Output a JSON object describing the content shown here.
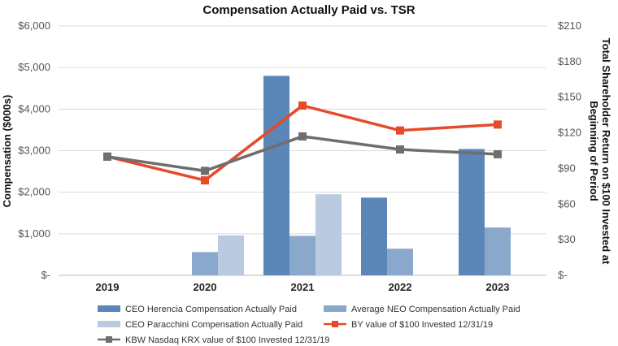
{
  "chart_data": {
    "type": "bar+line",
    "title": "Compensation Actually Paid vs. TSR",
    "ylabel_left": "Compensation ($000s)",
    "ylabel_right_line1": "Total Shareholder Return on $100 Invested at",
    "ylabel_right_line2": "Beginning of Period",
    "categories": [
      "2019",
      "2020",
      "2021",
      "2022",
      "2023"
    ],
    "ylim_left": [
      0,
      6000
    ],
    "ylim_right": [
      0,
      210
    ],
    "left_ticks": [
      {
        "value": 0,
        "label": "$-"
      },
      {
        "value": 1000,
        "label": "$1,000"
      },
      {
        "value": 2000,
        "label": "$2,000"
      },
      {
        "value": 3000,
        "label": "$3,000"
      },
      {
        "value": 4000,
        "label": "$4,000"
      },
      {
        "value": 5000,
        "label": "$5,000"
      },
      {
        "value": 6000,
        "label": "$6,000"
      }
    ],
    "right_ticks": [
      {
        "value": 0,
        "label": "$-"
      },
      {
        "value": 30,
        "label": "$30"
      },
      {
        "value": 60,
        "label": "$60"
      },
      {
        "value": 90,
        "label": "$90"
      },
      {
        "value": 120,
        "label": "$120"
      },
      {
        "value": 150,
        "label": "$150"
      },
      {
        "value": 180,
        "label": "$180"
      },
      {
        "value": 210,
        "label": "$210"
      }
    ],
    "bar_series": [
      {
        "name": "CEO Herencia Compensation Actually Paid",
        "color": "#5a87b8",
        "values": [
          null,
          null,
          4800,
          1870,
          3040
        ]
      },
      {
        "name": "Average NEO Compensation Actually Paid",
        "color": "#8aa8cc",
        "values": [
          null,
          560,
          950,
          640,
          1150
        ]
      },
      {
        "name": "CEO Paracchini Compensation Actually Paid",
        "color": "#b9cae1",
        "values": [
          null,
          960,
          1950,
          null,
          null
        ]
      }
    ],
    "line_series": [
      {
        "name": "BY value of $100 Invested 12/31/19",
        "color": "#e64a2a",
        "values": [
          100,
          80,
          143,
          122,
          127
        ]
      },
      {
        "name": "KBW Nasdaq KRX value of $100 Invested 12/31/19",
        "color": "#6e6e6e",
        "values": [
          100,
          88,
          117,
          106,
          102
        ]
      }
    ]
  }
}
